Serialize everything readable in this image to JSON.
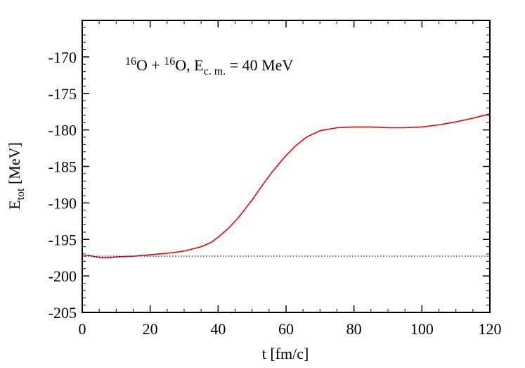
{
  "chart_data": {
    "type": "line",
    "title": "",
    "annotation": {
      "parts": [
        {
          "text": "16",
          "style": "sup"
        },
        {
          "text": "O + ",
          "style": "normal"
        },
        {
          "text": "16",
          "style": "sup"
        },
        {
          "text": "O, E",
          "style": "normal"
        },
        {
          "text": "c. m.",
          "style": "sub"
        },
        {
          "text": " = 40 MeV",
          "style": "normal"
        }
      ]
    },
    "xlabel": "t [fm/c]",
    "ylabel": {
      "main": "E",
      "sub": "tot",
      "rest": " [MeV]"
    },
    "xlim": [
      0,
      120
    ],
    "ylim": [
      -205,
      -165
    ],
    "xticks": [
      0,
      20,
      40,
      60,
      80,
      100,
      120
    ],
    "yticks": [
      -205,
      -200,
      -195,
      -190,
      -185,
      -180,
      -175,
      -170
    ],
    "grid": false,
    "series": [
      {
        "color": "#ee0000",
        "style": "solid",
        "x": [
          0,
          2,
          4,
          6,
          8,
          10,
          15,
          20,
          25,
          30,
          35,
          38,
          40,
          43,
          46,
          50,
          53,
          56,
          60,
          63,
          66,
          70,
          75,
          80,
          85,
          90,
          95,
          100,
          105,
          110,
          115,
          120
        ],
        "y": [
          -197.3,
          -197.2,
          -197.4,
          -197.5,
          -197.5,
          -197.4,
          -197.3,
          -197.1,
          -196.9,
          -196.6,
          -196.0,
          -195.4,
          -194.7,
          -193.5,
          -192.0,
          -189.6,
          -187.6,
          -185.7,
          -183.5,
          -182.1,
          -181.0,
          -180.1,
          -179.7,
          -179.6,
          -179.6,
          -179.7,
          -179.7,
          -179.6,
          -179.3,
          -178.9,
          -178.4,
          -177.8
        ]
      },
      {
        "color": "#1f1fb4",
        "style": "dotted",
        "x": [
          0,
          120
        ],
        "y": [
          -197.3,
          -197.3
        ]
      }
    ]
  }
}
